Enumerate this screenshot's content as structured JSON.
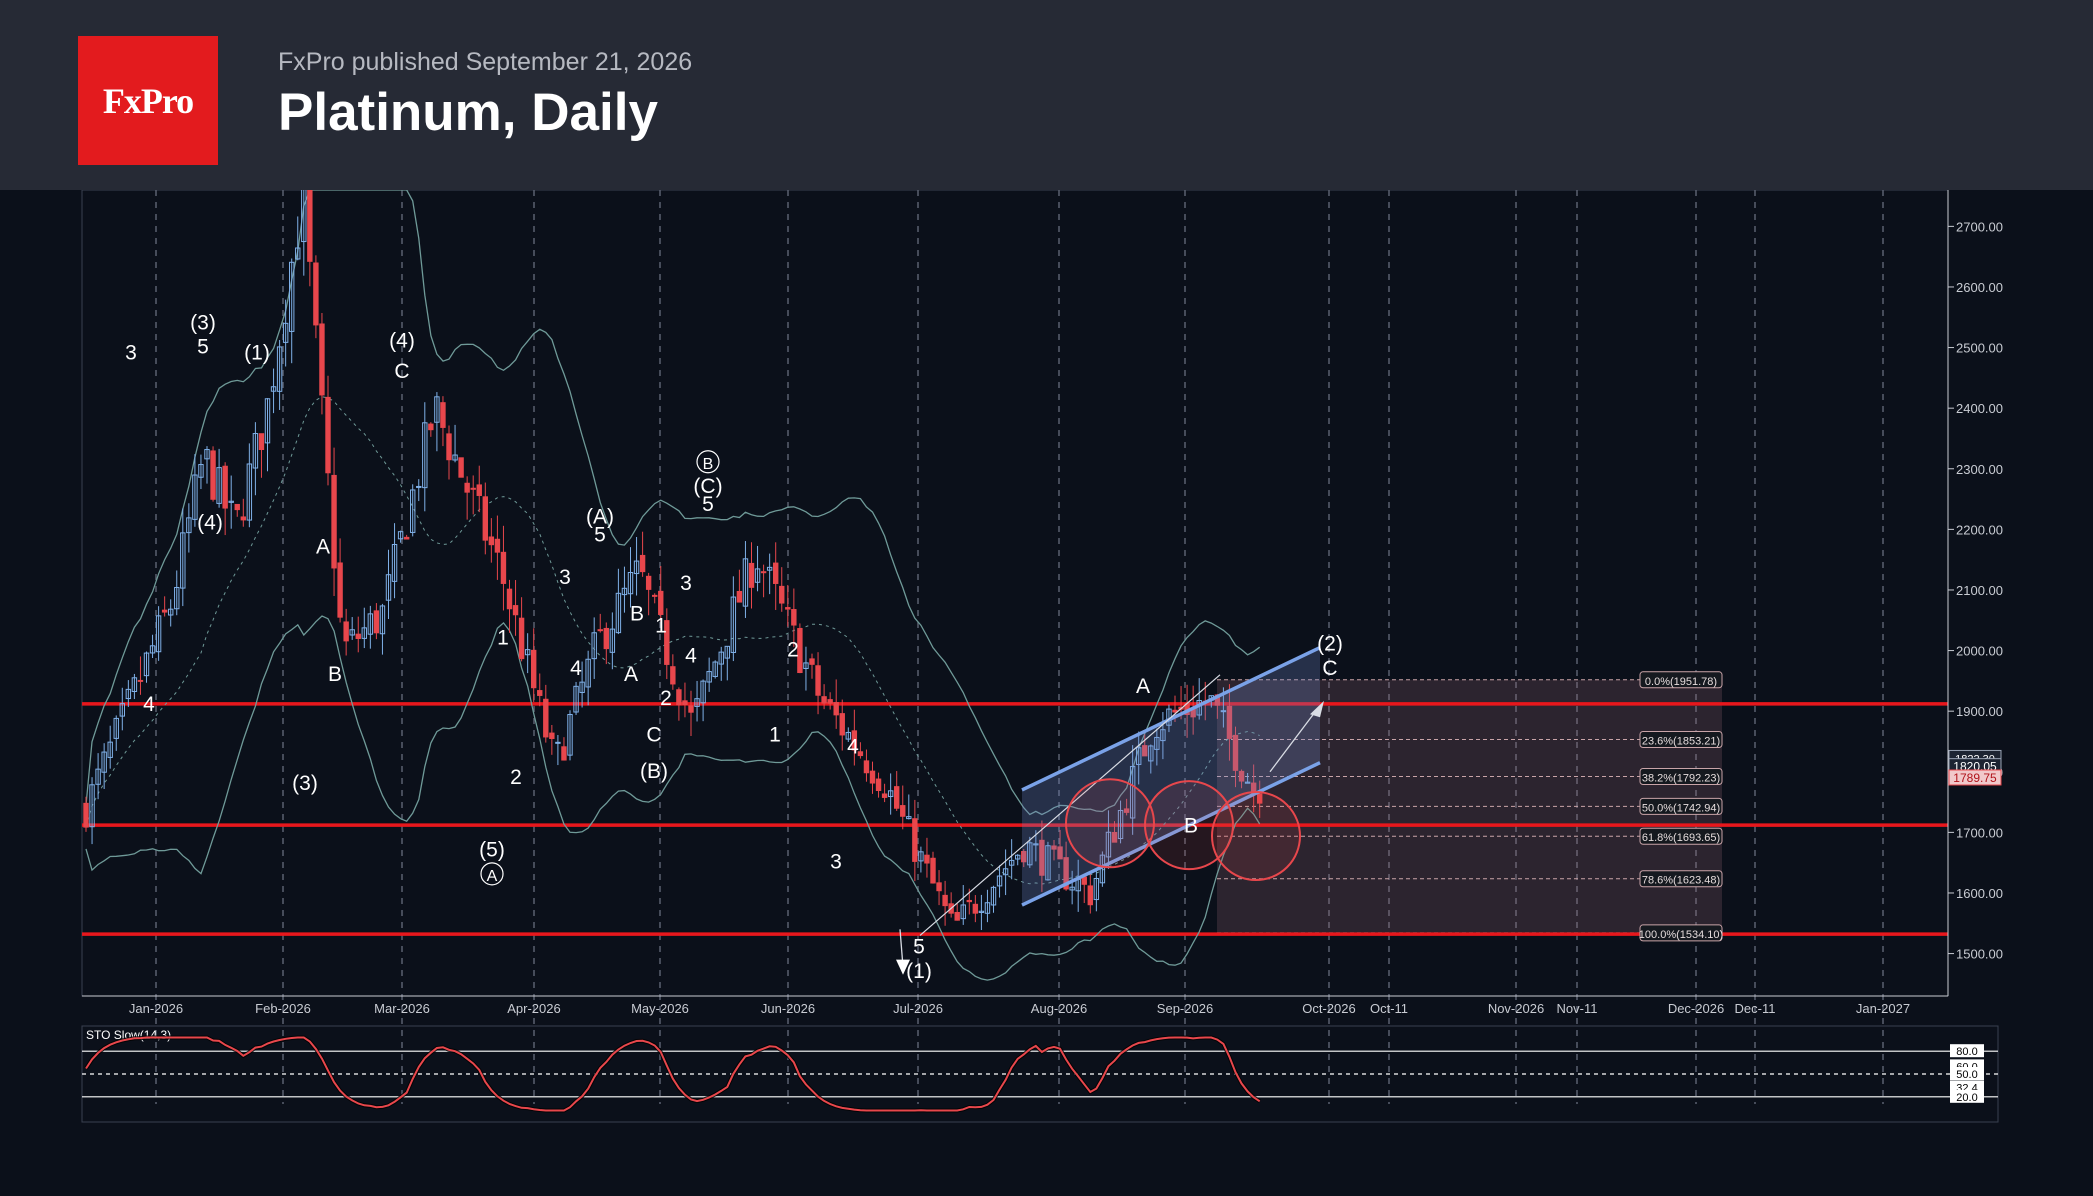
{
  "header": {
    "logo_text": "FxPro",
    "published": "FxPro published September 21, 2026",
    "title": "Platinum, Daily"
  },
  "colors": {
    "background": "#0b101a",
    "header": "#262a35",
    "brand_red": "#e31b1e",
    "bull_candle": "#7fb0e8",
    "bear_candle": "#e8474c",
    "support_line": "#e8171c",
    "channel": "#7aa2e8",
    "bollinger": "#6f9a98",
    "stochastic": "#e8474c"
  },
  "chart_data": {
    "type": "candlestick",
    "symbol": "Platinum",
    "timeframe": "Daily",
    "ylim": [
      1430,
      2760
    ],
    "price_ticks": [
      "2700.00",
      "2600.00",
      "2500.00",
      "2400.00",
      "2300.00",
      "2200.00",
      "2100.00",
      "2000.00",
      "1900.00",
      "1800.00",
      "1700.00",
      "1600.00",
      "1500.00"
    ],
    "date_labels": [
      "Jan-2026",
      "Feb-2026",
      "Mar-2026",
      "Apr-2026",
      "May-2026",
      "Jun-2026",
      "Jul-2026",
      "Aug-2026",
      "Sep-2026",
      "Oct-2026",
      "Oct-11",
      "Nov-2026",
      "Nov-11",
      "Dec-2026",
      "Dec-11",
      "Jan-2027"
    ],
    "price_path_anchors": [
      [
        "Dec-2025",
        1740
      ],
      [
        "Jan-2026",
        2080
      ],
      [
        "Jan-2026",
        2320
      ],
      [
        "Jan-2026",
        2200
      ],
      [
        "Jan-2026",
        2400
      ],
      [
        "Feb-2026",
        2750
      ],
      [
        "Feb-2026",
        2000
      ],
      [
        "Feb-2026",
        2060
      ],
      [
        "Mar-2026",
        2400
      ],
      [
        "Mar-2026",
        2130
      ],
      [
        "Apr-2026",
        1810
      ],
      [
        "Apr-2026",
        2010
      ],
      [
        "Apr-2026",
        2130
      ],
      [
        "May-2026",
        1880
      ],
      [
        "May-2026",
        2160
      ],
      [
        "Jun-2026",
        1920
      ],
      [
        "Jun-2026",
        1780
      ],
      [
        "Jul-2026",
        1540
      ],
      [
        "Jul-2026",
        1680
      ],
      [
        "Aug-2026",
        1600
      ],
      [
        "Aug-2026",
        1880
      ],
      [
        "Sep-2026",
        1920
      ],
      [
        "Sep-2026",
        1760
      ],
      [
        "Sep-2026",
        1810
      ]
    ],
    "horizontal_levels": [
      1912,
      1712,
      1532
    ],
    "fibonacci": [
      {
        "label": "0.0%(1951.78)",
        "value": 1951.78
      },
      {
        "label": "23.6%(1853.21)",
        "value": 1853.21
      },
      {
        "label": "38.2%(1792.23)",
        "value": 1792.23
      },
      {
        "label": "50.0%(1742.94)",
        "value": 1742.94
      },
      {
        "label": "61.8%(1693.65)",
        "value": 1693.65
      },
      {
        "label": "78.6%(1623.48)",
        "value": 1623.48
      },
      {
        "label": "100.0%(1534.10)",
        "value": 1534.1
      }
    ],
    "current_prices": [
      "1820.05",
      "1789.75"
    ],
    "overlapped_price_label": "1822.30",
    "wave_labels": [
      {
        "text": "3",
        "date": "Jan-2026",
        "price": 2480
      },
      {
        "text": "4",
        "date": "Jan-2026",
        "price": 1900
      },
      {
        "text": "(3)",
        "date": "Jan-2026",
        "price": 2530
      },
      {
        "text": "5",
        "date": "Jan-2026",
        "price": 2490
      },
      {
        "text": "(4)",
        "date": "Jan-2026",
        "price": 2200
      },
      {
        "text": "(1)",
        "date": "Feb-2026",
        "price": 2480
      },
      {
        "text": "A",
        "date": "Feb-2026",
        "price": 2160
      },
      {
        "text": "B",
        "date": "Feb-2026",
        "price": 1950
      },
      {
        "text": "(3)",
        "date": "Feb-2026",
        "price": 1770
      },
      {
        "text": "(4)",
        "date": "Mar-2026",
        "price": 2500
      },
      {
        "text": "C",
        "date": "Mar-2026",
        "price": 2450
      },
      {
        "text": "1",
        "date": "Mar-2026",
        "price": 2010
      },
      {
        "text": "(5)",
        "date": "Mar-2026",
        "price": 1660
      },
      {
        "text": "A",
        "date": "Mar-2026",
        "price": 1620,
        "circled": true
      },
      {
        "text": "2",
        "date": "Apr-2026",
        "price": 1780
      },
      {
        "text": "4",
        "date": "Apr-2026",
        "price": 1960
      },
      {
        "text": "3",
        "date": "Apr-2026",
        "price": 2110
      },
      {
        "text": "(A)",
        "date": "Apr-2026",
        "price": 2210
      },
      {
        "text": "5",
        "date": "Apr-2026",
        "price": 2180
      },
      {
        "text": "B",
        "date": "Apr-2026",
        "price": 2050
      },
      {
        "text": "A",
        "date": "May-2026",
        "price": 1950
      },
      {
        "text": "1",
        "date": "May-2026",
        "price": 2030
      },
      {
        "text": "2",
        "date": "May-2026",
        "price": 1910
      },
      {
        "text": "C",
        "date": "May-2026",
        "price": 1850
      },
      {
        "text": "(B)",
        "date": "May-2026",
        "price": 1790
      },
      {
        "text": "3",
        "date": "May-2026",
        "price": 2100
      },
      {
        "text": "4",
        "date": "May-2026",
        "price": 1980
      },
      {
        "text": "B",
        "date": "May-2026",
        "price": 2300,
        "circled": true
      },
      {
        "text": "(C)",
        "date": "May-2026",
        "price": 2260
      },
      {
        "text": "5",
        "date": "May-2026",
        "price": 2230
      },
      {
        "text": "2",
        "date": "Jun-2026",
        "price": 1990
      },
      {
        "text": "1",
        "date": "Jun-2026",
        "price": 1850
      },
      {
        "text": "4",
        "date": "Jun-2026",
        "price": 1830
      },
      {
        "text": "3",
        "date": "Jun-2026",
        "price": 1640
      },
      {
        "text": "5",
        "date": "Jul-2026",
        "price": 1500
      },
      {
        "text": "(1)",
        "date": "Jul-2026",
        "price": 1460
      },
      {
        "text": "A",
        "date": "Aug-2026",
        "price": 1930
      },
      {
        "text": "B",
        "date": "Sep-2026",
        "price": 1700
      },
      {
        "text": "(2)",
        "date": "Sep-2026",
        "price": 2000
      },
      {
        "text": "C",
        "date": "Sep-2026",
        "price": 1960
      }
    ],
    "stochastic": {
      "label": "STO Slow(14,3)",
      "levels": [
        "80.0",
        "60.0",
        "50.0",
        "32.4",
        "20.0"
      ],
      "ylim": [
        0,
        100
      ]
    }
  }
}
